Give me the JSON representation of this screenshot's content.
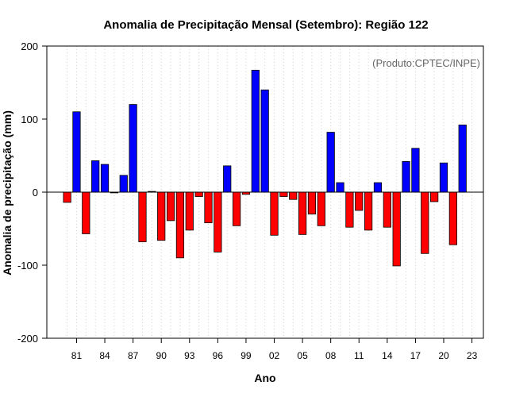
{
  "chart_data": {
    "type": "bar",
    "title": "Anomalia de Precipitação Mensal (Setembro): Região 122",
    "xlabel": "Ano",
    "ylabel": "Anomalia de precipitação (mm)",
    "source_note": "(Produto:CPTEC/INPE)",
    "ylim": [
      -200,
      200
    ],
    "yticks": [
      -200,
      -100,
      0,
      100,
      200
    ],
    "xtick_labels": [
      "81",
      "84",
      "87",
      "90",
      "93",
      "96",
      "99",
      "02",
      "05",
      "08",
      "11",
      "14",
      "17",
      "20",
      "23"
    ],
    "positive_color": "#0000ff",
    "negative_color": "#ff0000",
    "grid": true,
    "categories": [
      "1980",
      "1981",
      "1982",
      "1983",
      "1984",
      "1985",
      "1986",
      "1987",
      "1988",
      "1989",
      "1990",
      "1991",
      "1992",
      "1993",
      "1994",
      "1995",
      "1996",
      "1997",
      "1998",
      "1999",
      "2000",
      "2001",
      "2002",
      "2003",
      "2004",
      "2005",
      "2006",
      "2007",
      "2008",
      "2009",
      "2010",
      "2011",
      "2012",
      "2013",
      "2014",
      "2015",
      "2016",
      "2017",
      "2018",
      "2019",
      "2020",
      "2021",
      "2022",
      "2023"
    ],
    "values": [
      -14,
      110,
      -57,
      43,
      38,
      -1,
      23,
      120,
      -68,
      1,
      -66,
      -39,
      -90,
      -52,
      -6,
      -42,
      -82,
      36,
      -46,
      -3,
      167,
      140,
      -59,
      -6,
      -10,
      -58,
      -30,
      -46,
      82,
      13,
      -48,
      -25,
      -52,
      13,
      -48,
      -101,
      42,
      60,
      -84,
      -13,
      40,
      -72,
      92,
      0
    ]
  }
}
